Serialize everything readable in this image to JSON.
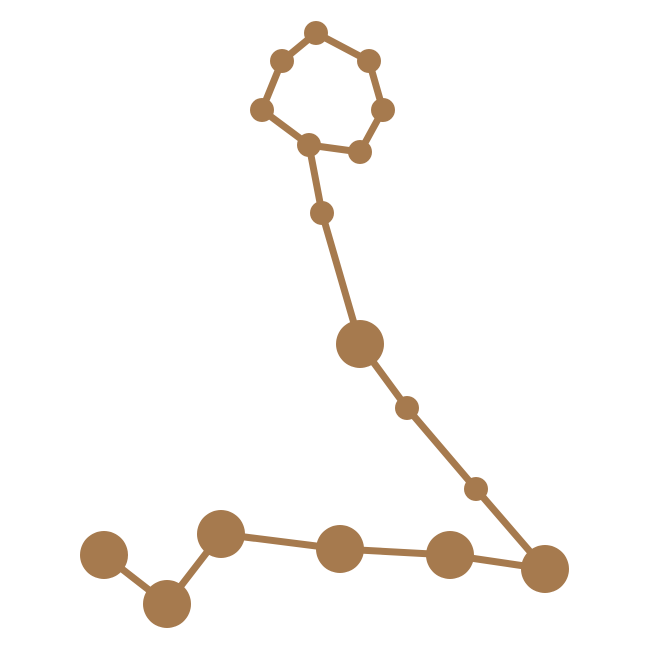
{
  "icon": {
    "name": "pisces-constellation-icon",
    "color": "#a67a4e",
    "background": "#ffffff"
  }
}
